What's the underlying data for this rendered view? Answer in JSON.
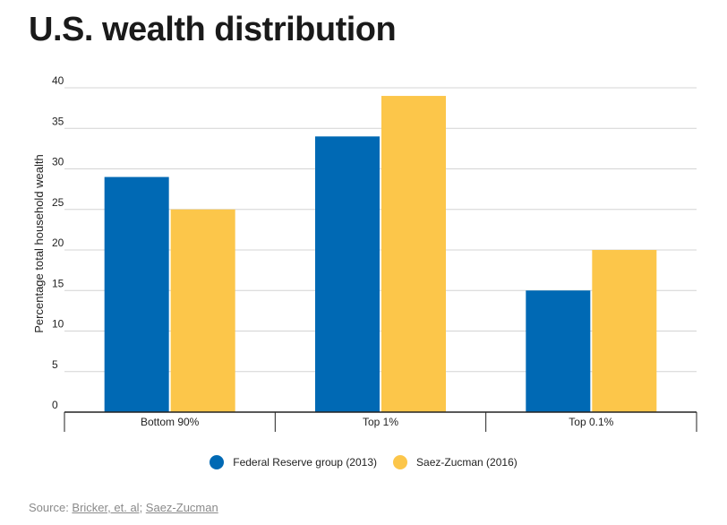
{
  "title": "U.S. wealth distribution",
  "chart_data": {
    "type": "bar",
    "categories": [
      "Bottom 90%",
      "Top 1%",
      "Top 0.1%"
    ],
    "series": [
      {
        "name": "Federal Reserve group (2013)",
        "color": "#0069b4",
        "values": [
          29,
          34,
          15
        ]
      },
      {
        "name": "Saez-Zucman (2016)",
        "color": "#fcc64a",
        "values": [
          25,
          39,
          20
        ]
      }
    ],
    "ylabel": "Percentage total household wealth",
    "ylim": [
      0,
      40
    ],
    "yticks": [
      "0",
      "5",
      "10",
      "15",
      "20",
      "25",
      "30",
      "35",
      "40"
    ],
    "grid": true,
    "legend": "bottom"
  },
  "source": {
    "prefix": "Source: ",
    "link1": "Bricker, et. al",
    "separator": "; ",
    "link2": "Saez-Zucman"
  }
}
